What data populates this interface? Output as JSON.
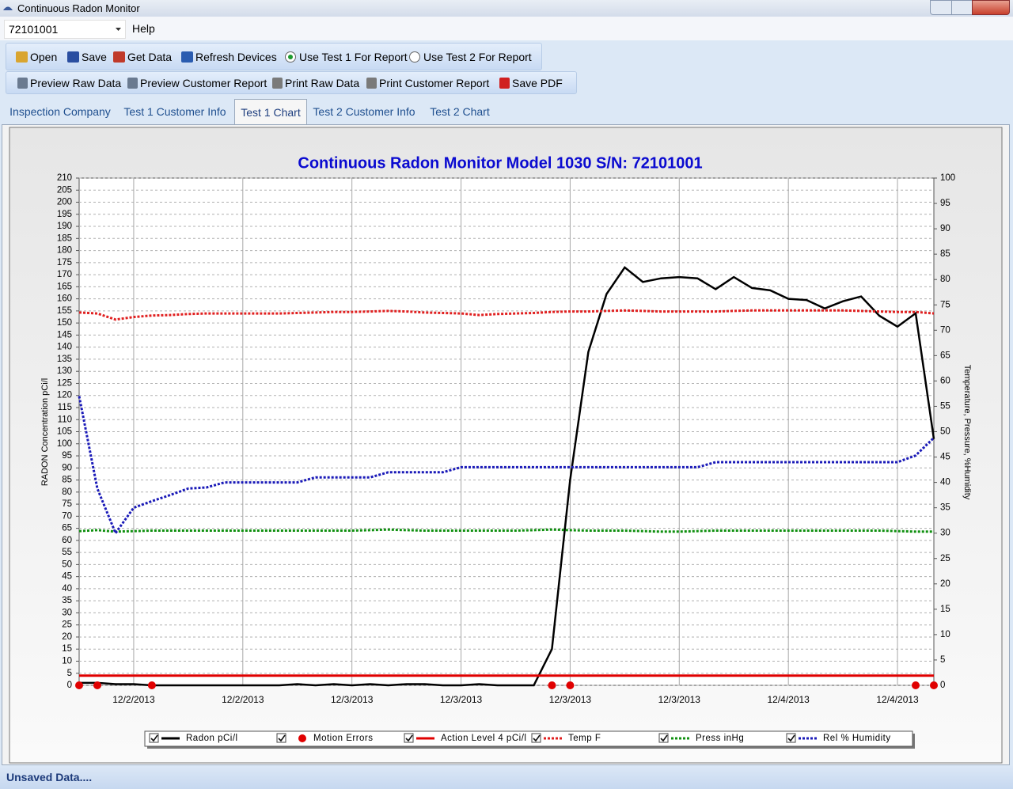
{
  "window": {
    "title": "Continuous Radon Monitor"
  },
  "menu": {
    "device": "72101001",
    "items": [
      "Help"
    ]
  },
  "toolbar1": {
    "buttons": [
      "Open",
      "Save",
      "Get Data",
      "Refresh Devices"
    ],
    "radios": [
      {
        "label": "Use Test 1 For Report",
        "checked": true
      },
      {
        "label": "Use Test 2 For Report",
        "checked": false
      }
    ]
  },
  "toolbar2": {
    "buttons": [
      "Preview Raw Data",
      "Preview Customer Report",
      "Print Raw Data",
      "Print Customer Report",
      "Save PDF"
    ]
  },
  "tabs": {
    "items": [
      "Inspection Company",
      "Test 1 Customer Info",
      "Test 1 Chart",
      "Test 2 Customer Info",
      "Test 2 Chart"
    ],
    "active": 2
  },
  "chart_data": {
    "type": "line",
    "title": "Continuous Radon Monitor Model 1030 S/N: 72101001",
    "y_label": "RADON Concentration pCi/l",
    "y2_label": "Temperature, Pressure, %Humidity",
    "categories": [
      null,
      null,
      null,
      "12/2/2013",
      null,
      null,
      null,
      null,
      null,
      "12/2/2013",
      null,
      null,
      null,
      null,
      null,
      "12/3/2013",
      null,
      null,
      null,
      null,
      null,
      "12/3/2013",
      null,
      null,
      null,
      null,
      null,
      "12/3/2013",
      null,
      null,
      null,
      null,
      null,
      "12/3/2013",
      null,
      null,
      null,
      null,
      null,
      "12/4/2013",
      null,
      null,
      null,
      null,
      null,
      "12/4/2013",
      null,
      null
    ],
    "ylim": [
      0,
      210
    ],
    "yticks": [
      0,
      5,
      10,
      15,
      20,
      25,
      30,
      35,
      40,
      45,
      50,
      55,
      60,
      65,
      70,
      75,
      80,
      85,
      90,
      95,
      100,
      105,
      110,
      115,
      120,
      125,
      130,
      135,
      140,
      145,
      150,
      155,
      160,
      165,
      170,
      175,
      180,
      185,
      190,
      195,
      200,
      205,
      210
    ],
    "y2lim": [
      0,
      100
    ],
    "y2ticks": [
      0,
      5,
      10,
      15,
      20,
      25,
      30,
      35,
      40,
      45,
      50,
      55,
      60,
      65,
      70,
      75,
      80,
      85,
      90,
      95,
      100
    ],
    "grid": true,
    "legend": "bottom",
    "series": [
      {
        "name": "Radon pCi/l",
        "color": "#000000",
        "style": "solid",
        "values": [
          1,
          1,
          0.5,
          0.5,
          0,
          0,
          0,
          0,
          0,
          0,
          0,
          0,
          0.5,
          0,
          0.5,
          0,
          0.5,
          0,
          0.5,
          0.5,
          0,
          0,
          0.5,
          0,
          0,
          0,
          15,
          85,
          138,
          162,
          173,
          167,
          168.5,
          169,
          168.5,
          164,
          169,
          164.5,
          163.5,
          160,
          159.5,
          156,
          159,
          161,
          153,
          148.5,
          154,
          102
        ]
      },
      {
        "name": "Motion Errors",
        "color": "#e00000",
        "style": "markers",
        "values": [
          0,
          0,
          null,
          null,
          0,
          null,
          null,
          null,
          null,
          null,
          null,
          null,
          null,
          null,
          null,
          null,
          null,
          null,
          null,
          null,
          null,
          null,
          null,
          null,
          null,
          null,
          0,
          0,
          null,
          null,
          null,
          null,
          null,
          null,
          null,
          null,
          null,
          null,
          null,
          null,
          null,
          null,
          null,
          null,
          null,
          null,
          0,
          0
        ]
      },
      {
        "name": "Action Level 4 pCi/l",
        "color": "#e00000",
        "style": "solid",
        "values": [
          4,
          4,
          4,
          4,
          4,
          4,
          4,
          4,
          4,
          4,
          4,
          4,
          4,
          4,
          4,
          4,
          4,
          4,
          4,
          4,
          4,
          4,
          4,
          4,
          4,
          4,
          4,
          4,
          4,
          4,
          4,
          4,
          4,
          4,
          4,
          4,
          4,
          4,
          4,
          4,
          4,
          4,
          4,
          4,
          4,
          4,
          4,
          4
        ]
      },
      {
        "name": "Temp F",
        "color": "#e02020",
        "style": "dotted",
        "axis": "y2",
        "values": [
          73.5,
          73.3,
          72.1,
          72.6,
          72.9,
          73.0,
          73.2,
          73.3,
          73.3,
          73.3,
          73.3,
          73.3,
          73.4,
          73.5,
          73.6,
          73.6,
          73.7,
          73.8,
          73.7,
          73.5,
          73.4,
          73.3,
          73.0,
          73.2,
          73.3,
          73.4,
          73.6,
          73.7,
          73.7,
          73.8,
          73.9,
          73.8,
          73.7,
          73.7,
          73.7,
          73.7,
          73.8,
          73.9,
          73.9,
          73.9,
          73.9,
          73.9,
          73.9,
          73.8,
          73.7,
          73.6,
          73.6,
          73.3
        ]
      },
      {
        "name": "Press inHg",
        "color": "#109010",
        "style": "dotted",
        "axis": "y2",
        "values": [
          30.4,
          30.6,
          30.3,
          30.4,
          30.5,
          30.5,
          30.5,
          30.5,
          30.5,
          30.5,
          30.5,
          30.5,
          30.5,
          30.5,
          30.5,
          30.5,
          30.6,
          30.7,
          30.6,
          30.5,
          30.5,
          30.5,
          30.5,
          30.5,
          30.5,
          30.6,
          30.7,
          30.6,
          30.5,
          30.5,
          30.5,
          30.4,
          30.3,
          30.3,
          30.4,
          30.5,
          30.5,
          30.5,
          30.5,
          30.5,
          30.5,
          30.5,
          30.5,
          30.5,
          30.5,
          30.4,
          30.3,
          30.3
        ]
      },
      {
        "name": "Rel % Humidity",
        "color": "#1a1ab8",
        "style": "dotted",
        "axis": "y2",
        "values": [
          57,
          38.8,
          30,
          35,
          36.3,
          37.5,
          38.8,
          39,
          40,
          40,
          40,
          40,
          40,
          41,
          41,
          41,
          41,
          42,
          42,
          42,
          42,
          43,
          43,
          43,
          43,
          43,
          43,
          43,
          43,
          43,
          43,
          43,
          43,
          43,
          43,
          44,
          44,
          44,
          44,
          44,
          44,
          44,
          44,
          44,
          44,
          44,
          45.3,
          48.8
        ]
      }
    ]
  },
  "status": "Unsaved Data...."
}
